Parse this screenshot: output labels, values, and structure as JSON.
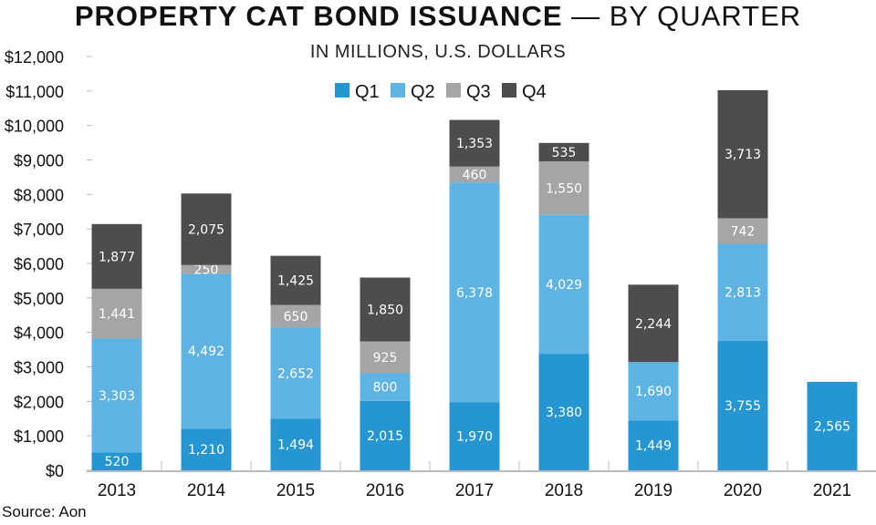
{
  "chart_data": {
    "type": "bar",
    "stacked": true,
    "title": "PROPERTY CAT BOND ISSUANCE",
    "title_suffix": " — BY QUARTER",
    "subtitle": "IN MILLIONS, U.S. DOLLARS",
    "source": "Source: Aon",
    "categories": [
      "2013",
      "2014",
      "2015",
      "2016",
      "2017",
      "2018",
      "2019",
      "2020",
      "2021"
    ],
    "series": [
      {
        "name": "Q1",
        "color": "#2596d1",
        "values": [
          520,
          1210,
          1494,
          2015,
          1970,
          3380,
          1449,
          3755,
          2565
        ]
      },
      {
        "name": "Q2",
        "color": "#5db3e3",
        "values": [
          3303,
          4492,
          2652,
          800,
          6378,
          4029,
          1690,
          2813,
          0
        ]
      },
      {
        "name": "Q3",
        "color": "#a5a5a5",
        "values": [
          1441,
          250,
          650,
          925,
          460,
          1550,
          0,
          742,
          0
        ]
      },
      {
        "name": "Q4",
        "color": "#4d4d4f",
        "values": [
          1877,
          2075,
          1425,
          1850,
          1353,
          535,
          2244,
          3713,
          0
        ]
      }
    ],
    "ylim": [
      0,
      12000
    ],
    "yticks": [
      "$0",
      "$1,000",
      "$2,000",
      "$3,000",
      "$4,000",
      "$5,000",
      "$6,000",
      "$7,000",
      "$8,000",
      "$9,000",
      "$10,000",
      "$11,000",
      "$12,000"
    ],
    "legend_position": "top-center",
    "grid": false
  }
}
